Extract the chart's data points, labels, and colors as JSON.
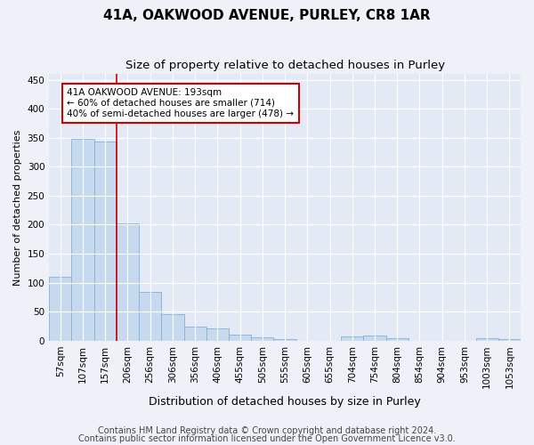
{
  "title": "41A, OAKWOOD AVENUE, PURLEY, CR8 1AR",
  "subtitle": "Size of property relative to detached houses in Purley",
  "xlabel": "Distribution of detached houses by size in Purley",
  "ylabel": "Number of detached properties",
  "bin_labels": [
    "57sqm",
    "107sqm",
    "157sqm",
    "206sqm",
    "256sqm",
    "306sqm",
    "356sqm",
    "406sqm",
    "455sqm",
    "505sqm",
    "555sqm",
    "605sqm",
    "655sqm",
    "704sqm",
    "754sqm",
    "804sqm",
    "854sqm",
    "904sqm",
    "953sqm",
    "1003sqm",
    "1053sqm"
  ],
  "bar_heights": [
    110,
    348,
    343,
    202,
    84,
    46,
    24,
    21,
    10,
    6,
    2,
    0,
    0,
    7,
    8,
    4,
    0,
    0,
    0,
    4,
    3
  ],
  "bar_color": "#c6d9ee",
  "bar_edge_color": "#7fb3d9",
  "ref_line_x": 2.5,
  "ref_line_color": "#cc0000",
  "annotation_text": "41A OAKWOOD AVENUE: 193sqm\n← 60% of detached houses are smaller (714)\n40% of semi-detached houses are larger (478) →",
  "annotation_box_color": "#cc0000",
  "ylim": [
    0,
    460
  ],
  "yticks": [
    0,
    50,
    100,
    150,
    200,
    250,
    300,
    350,
    400,
    450
  ],
  "footer1": "Contains HM Land Registry data © Crown copyright and database right 2024.",
  "footer2": "Contains public sector information licensed under the Open Government Licence v3.0.",
  "bg_color": "#eef2f8",
  "plot_bg_color": "#e4eaf5",
  "grid_color": "#ffffff",
  "title_fontsize": 11,
  "subtitle_fontsize": 9.5,
  "ylabel_fontsize": 8,
  "xlabel_fontsize": 9,
  "tick_fontsize": 7.5,
  "footer_fontsize": 7,
  "ann_fontsize": 7.5
}
